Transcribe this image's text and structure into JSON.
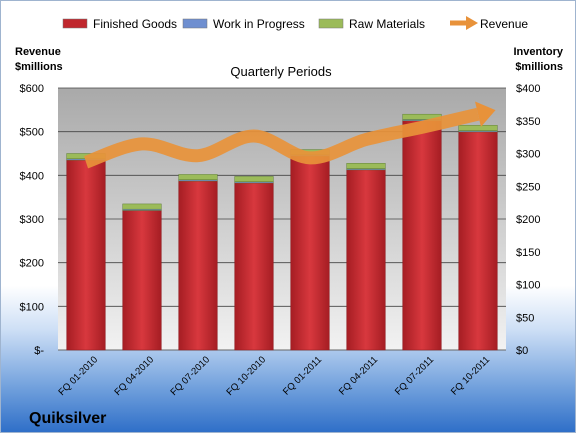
{
  "chart_data": {
    "type": "bar",
    "subtitle": "Quarterly Periods",
    "company": "Quiksilver",
    "left_axis_label": [
      "Revenue",
      "$millions"
    ],
    "right_axis_label": [
      "Inventory",
      "$millions"
    ],
    "categories": [
      "FQ 01-2010",
      "FQ 04-2010",
      "FQ 07-2010",
      "FQ 10-2010",
      "FQ 01-2011",
      "FQ 04-2011",
      "FQ 07-2011",
      "FQ 10-2011"
    ],
    "stack_axis": "right",
    "left_ticks": [
      "$-",
      "$100",
      "$200",
      "$300",
      "$400",
      "$500",
      "$600"
    ],
    "left_ylim": [
      0,
      600
    ],
    "right_ticks": [
      "$0",
      "$50",
      "$100",
      "$150",
      "$200",
      "$250",
      "$300",
      "$350",
      "$400"
    ],
    "right_ylim": [
      0,
      400
    ],
    "legend_position": "top",
    "series": [
      {
        "name": "Finished Goods",
        "kind": "bar",
        "axis": "right",
        "color": "#c0272d",
        "values": [
          290,
          213,
          258,
          255,
          296,
          275,
          350,
          333
        ]
      },
      {
        "name": "Work in Progress",
        "kind": "bar",
        "axis": "right",
        "color": "#6f8fd0",
        "values": [
          2,
          2,
          2,
          2,
          2,
          2,
          2,
          2
        ]
      },
      {
        "name": "Raw Materials",
        "kind": "bar",
        "axis": "right",
        "color": "#9bbb59",
        "values": [
          8,
          8,
          8,
          8,
          8,
          8,
          8,
          8
        ]
      },
      {
        "name": "Revenue",
        "kind": "line",
        "axis": "left",
        "color": "#e8923a",
        "values": [
          430,
          472,
          445,
          490,
          440,
          482,
          510,
          540
        ]
      }
    ],
    "grid": true
  }
}
